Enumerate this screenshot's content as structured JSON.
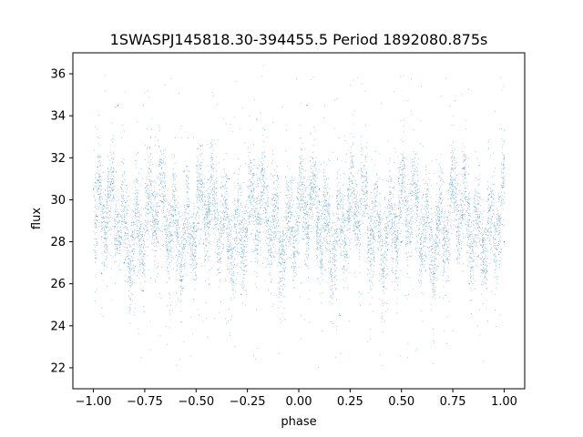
{
  "chart_data": {
    "type": "scatter",
    "title": "1SWASPJ145818.30-394455.5 Period 1892080.875s",
    "xlabel": "phase",
    "ylabel": "flux",
    "xlim": [
      -1.1,
      1.1
    ],
    "ylim": [
      21,
      37
    ],
    "xticks": [
      -1.0,
      -0.75,
      -0.5,
      -0.25,
      0.0,
      0.25,
      0.5,
      0.75,
      1.0
    ],
    "xtick_labels": [
      "−1.00",
      "−0.75",
      "−0.50",
      "−0.25",
      "0.00",
      "0.25",
      "0.50",
      "0.75",
      "1.00"
    ],
    "yticks": [
      22,
      24,
      26,
      28,
      30,
      32,
      34,
      36
    ],
    "ytick_labels": [
      "22",
      "24",
      "26",
      "28",
      "30",
      "32",
      "34",
      "36"
    ],
    "grid": false,
    "series": [
      {
        "color": "#1f77b4",
        "x_range": [
          -1.0,
          1.0
        ],
        "bulk_y_range": [
          26,
          32
        ],
        "median_y": 29,
        "x_sample": [
          -1.0,
          -0.96,
          -0.88,
          -0.85,
          -0.7,
          -0.6,
          -0.5,
          -0.34,
          -0.28,
          -0.2,
          -0.15,
          -0.07,
          0.04,
          0.1,
          0.2,
          0.24,
          0.36,
          0.5,
          0.66,
          0.72,
          0.8,
          0.83,
          0.93,
          1.0
        ],
        "y_sample": [
          30.5,
          26.5,
          34.5,
          27.0,
          28.5,
          29.5,
          28.5,
          31.0,
          25.5,
          31.5,
          29.0,
          27.0,
          34.5,
          30.5,
          24.5,
          30.5,
          28.5,
          28.0,
          26.5,
          28.5,
          31.5,
          26.0,
          29.5,
          28.0
        ]
      }
    ]
  }
}
